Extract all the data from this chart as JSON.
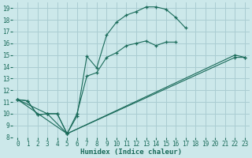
{
  "xlabel": "Humidex (Indice chaleur)",
  "bg_color": "#cce8ea",
  "grid_color": "#aacdd2",
  "line_color": "#1a6b5a",
  "xlim": [
    -0.5,
    23.5
  ],
  "ylim": [
    8,
    19.5
  ],
  "xticks": [
    0,
    1,
    2,
    3,
    4,
    5,
    6,
    7,
    8,
    9,
    10,
    11,
    12,
    13,
    14,
    15,
    16,
    17,
    18,
    19,
    20,
    21,
    22,
    23
  ],
  "yticks": [
    8,
    9,
    10,
    11,
    12,
    13,
    14,
    15,
    16,
    17,
    18,
    19
  ],
  "lines": [
    {
      "x": [
        0,
        1,
        2,
        3,
        4,
        5,
        6,
        7,
        8,
        9,
        10,
        11,
        12,
        13,
        14,
        15,
        16,
        17
      ],
      "y": [
        11.2,
        11.1,
        9.9,
        10.0,
        10.0,
        8.3,
        9.8,
        14.9,
        13.9,
        16.7,
        17.8,
        18.4,
        18.7,
        19.1,
        19.1,
        18.9,
        18.2,
        17.3
      ]
    },
    {
      "x": [
        0,
        1,
        2,
        3,
        4,
        5,
        6,
        7,
        8,
        9,
        10,
        11,
        12,
        13,
        14,
        15,
        16
      ],
      "y": [
        11.2,
        11.1,
        9.9,
        10.0,
        10.0,
        8.3,
        10.0,
        13.2,
        13.5,
        14.8,
        15.2,
        15.8,
        16.0,
        16.2,
        15.8,
        16.1,
        16.1
      ]
    },
    {
      "x": [
        0,
        3,
        5,
        22,
        23
      ],
      "y": [
        11.2,
        10.0,
        8.3,
        15.0,
        14.8
      ]
    },
    {
      "x": [
        0,
        5,
        22,
        23
      ],
      "y": [
        11.2,
        8.3,
        14.8,
        14.8
      ]
    }
  ]
}
